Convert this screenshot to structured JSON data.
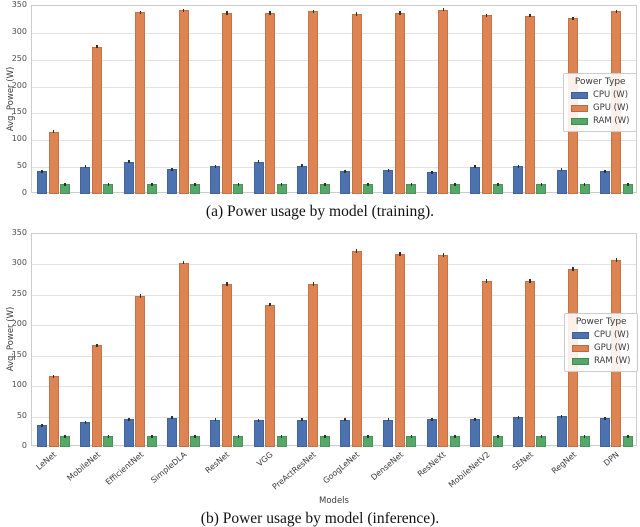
{
  "style": {
    "background": "#ffffff",
    "grid_color": "#e2e2e2",
    "axes_border_color": "#cccccc",
    "tick_label_color": "#4d4d4d",
    "axis_label_color": "#3a3a3a",
    "caption_color": "#111111",
    "error_bar_color": "#2f2f2f",
    "cpu_color": "#4c72b0",
    "gpu_color": "#dd8452",
    "ram_color": "#55a868"
  },
  "chart_data": [
    {
      "id": "training",
      "type": "bar",
      "title": "(a) Power usage by model (training).",
      "xlabel": "",
      "ylabel": "Avg. Power (W)",
      "ylim": [
        0,
        350
      ],
      "yticks": [
        0,
        50,
        100,
        150,
        200,
        250,
        300,
        350
      ],
      "grid": true,
      "error_bars": true,
      "x_tick_labels_visible": false,
      "legend_title": "Power Type",
      "legend_position": "right",
      "categories": [
        "LeNet",
        "MobileNet",
        "EfficientNet",
        "SimpleDLA",
        "ResNet",
        "VGG",
        "PreActResNet",
        "GoogLeNet",
        "DenseNet",
        "ResNeXt",
        "MobileNetV2",
        "SENet",
        "RegNet",
        "DPN"
      ],
      "series": [
        {
          "key": "cpu",
          "name": "CPU (W)",
          "color": "#4c72b0",
          "error": 2,
          "values": [
            42,
            51,
            60,
            46,
            52,
            60,
            53,
            42,
            44,
            41,
            51,
            52,
            45,
            42
          ]
        },
        {
          "key": "gpu",
          "name": "GPU (W)",
          "color": "#dd8452",
          "error": 3,
          "values": [
            116,
            274,
            338,
            342,
            337,
            337,
            340,
            335,
            337,
            343,
            333,
            332,
            327,
            340
          ]
        },
        {
          "key": "ram",
          "name": "RAM (W)",
          "color": "#55a868",
          "error": 1,
          "values": [
            18,
            18,
            18,
            18,
            18,
            18,
            18,
            18,
            18,
            18,
            18,
            18,
            18,
            18
          ]
        }
      ]
    },
    {
      "id": "inference",
      "type": "bar",
      "title": "(b) Power usage by model (inference).",
      "xlabel": "Models",
      "ylabel": "Avg. Power (W)",
      "ylim": [
        0,
        350
      ],
      "yticks": [
        0,
        50,
        100,
        150,
        200,
        250,
        300,
        350
      ],
      "grid": true,
      "error_bars": true,
      "x_tick_labels_visible": true,
      "legend_title": "Power Type",
      "legend_position": "right",
      "categories": [
        "LeNet",
        "MobileNet",
        "EfficientNet",
        "SimpleDLA",
        "ResNet",
        "VGG",
        "PreActResNet",
        "GoogLeNet",
        "DenseNet",
        "ResNeXt",
        "MobileNetV2",
        "SENet",
        "RegNet",
        "DPN"
      ],
      "series": [
        {
          "key": "cpu",
          "name": "CPU (W)",
          "color": "#4c72b0",
          "error": 2,
          "values": [
            36,
            41,
            46,
            48,
            45,
            44,
            45,
            45,
            45,
            46,
            46,
            49,
            51,
            47
          ]
        },
        {
          "key": "gpu",
          "name": "GPU (W)",
          "color": "#dd8452",
          "error": 3,
          "values": [
            116,
            167,
            248,
            303,
            268,
            234,
            268,
            322,
            317,
            316,
            273,
            273,
            293,
            307
          ]
        },
        {
          "key": "ram",
          "name": "RAM (W)",
          "color": "#55a868",
          "error": 1,
          "values": [
            18,
            18,
            18,
            18,
            18,
            18,
            18,
            18,
            18,
            18,
            18,
            18,
            18,
            18
          ]
        }
      ]
    }
  ]
}
